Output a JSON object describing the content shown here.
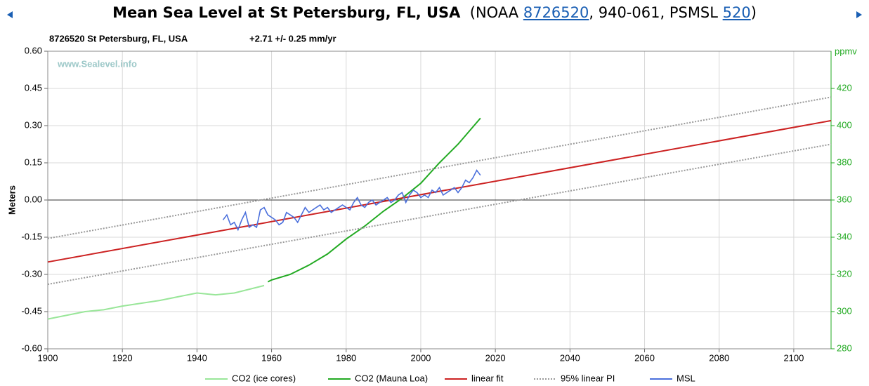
{
  "chart_data": {
    "type": "line",
    "title": "Mean Sea Level at St Petersburg, FL, USA",
    "title_note": [
      "(NOAA ",
      "8726520",
      ", 940-061, PSMSL ",
      "520",
      ")"
    ],
    "subtitle": [
      "8726520 St Petersburg, FL, USA",
      "+2.71 +/- 0.25 mm/yr"
    ],
    "watermark": "www.Sealevel.info",
    "ylabel": "Meters",
    "y2label": "ppmv",
    "xlim": [
      1900,
      2110
    ],
    "xticks": [
      1900,
      1920,
      1940,
      1960,
      1980,
      2000,
      2020,
      2040,
      2060,
      2080,
      2100
    ],
    "ylim": [
      -0.6,
      0.6
    ],
    "yticks": [
      {
        "value": 0.6,
        "label": "0.60"
      },
      {
        "value": 0.45,
        "label": "0.45"
      },
      {
        "value": 0.3,
        "label": "0.30"
      },
      {
        "value": 0.15,
        "label": "0.15"
      },
      {
        "value": 0,
        "label": "0.00"
      },
      {
        "value": -0.15,
        "label": "-0.15"
      },
      {
        "value": -0.3,
        "label": "-0.30"
      },
      {
        "value": -0.45,
        "label": "-0.45"
      },
      {
        "value": -0.6,
        "label": "-0.60"
      }
    ],
    "y2lim": [
      280,
      440
    ],
    "y2ticks": [
      280,
      300,
      320,
      340,
      360,
      380,
      400,
      420
    ],
    "y2color": "#22aa22",
    "grid": true,
    "series": [
      {
        "name": "CO2 (ice cores)",
        "color": "#99e699",
        "axis": "y2",
        "style": "solid",
        "x": [
          1900,
          1910,
          1915,
          1920,
          1930,
          1940,
          1945,
          1950,
          1958
        ],
        "values": [
          296,
          300,
          301,
          303,
          306,
          310,
          309,
          310,
          314
        ]
      },
      {
        "name": "CO2 (Mauna Loa)",
        "color": "#22aa22",
        "axis": "y2",
        "style": "solid",
        "x": [
          1959,
          1960,
          1965,
          1970,
          1975,
          1980,
          1985,
          1990,
          1995,
          2000,
          2005,
          2010,
          2016
        ],
        "values": [
          316,
          317,
          320,
          325,
          331,
          339,
          346,
          354,
          361,
          369,
          380,
          390,
          404
        ]
      },
      {
        "name": "linear fit",
        "color": "#cc2222",
        "style": "solid",
        "x": [
          1900,
          2110
        ],
        "values": [
          -0.25,
          0.32
        ]
      },
      {
        "name": "95% linear PI",
        "color": "#999999",
        "style": "dotted",
        "x": [
          1900,
          2110
        ],
        "values": [
          -0.155,
          0.415
        ],
        "values_lower": [
          -0.34,
          0.225
        ]
      },
      {
        "name": "MSL",
        "color": "#4a6fdc",
        "style": "solid",
        "x": [
          1947,
          1948,
          1949,
          1950,
          1951,
          1952,
          1953,
          1954,
          1955,
          1956,
          1957,
          1958,
          1959,
          1960,
          1961,
          1962,
          1963,
          1964,
          1965,
          1966,
          1967,
          1968,
          1969,
          1970,
          1971,
          1972,
          1973,
          1974,
          1975,
          1976,
          1977,
          1978,
          1979,
          1980,
          1981,
          1982,
          1983,
          1984,
          1985,
          1986,
          1987,
          1988,
          1989,
          1990,
          1991,
          1992,
          1993,
          1994,
          1995,
          1996,
          1997,
          1998,
          1999,
          2000,
          2001,
          2002,
          2003,
          2004,
          2005,
          2006,
          2007,
          2008,
          2009,
          2010,
          2011,
          2012,
          2013,
          2014,
          2015,
          2016
        ],
        "values": [
          -0.08,
          -0.06,
          -0.1,
          -0.09,
          -0.12,
          -0.08,
          -0.05,
          -0.11,
          -0.1,
          -0.11,
          -0.04,
          -0.03,
          -0.06,
          -0.07,
          -0.08,
          -0.1,
          -0.09,
          -0.05,
          -0.06,
          -0.07,
          -0.09,
          -0.06,
          -0.03,
          -0.05,
          -0.04,
          -0.03,
          -0.02,
          -0.04,
          -0.03,
          -0.05,
          -0.04,
          -0.03,
          -0.02,
          -0.03,
          -0.04,
          -0.01,
          0.01,
          -0.02,
          -0.03,
          -0.01,
          0,
          -0.02,
          -0.01,
          0,
          0.01,
          -0.01,
          0,
          0.02,
          0.03,
          -0.01,
          0.02,
          0.04,
          0.03,
          0.01,
          0.02,
          0.01,
          0.04,
          0.03,
          0.05,
          0.02,
          0.03,
          0.04,
          0.05,
          0.03,
          0.05,
          0.08,
          0.07,
          0.09,
          0.12,
          0.1
        ]
      }
    ]
  }
}
